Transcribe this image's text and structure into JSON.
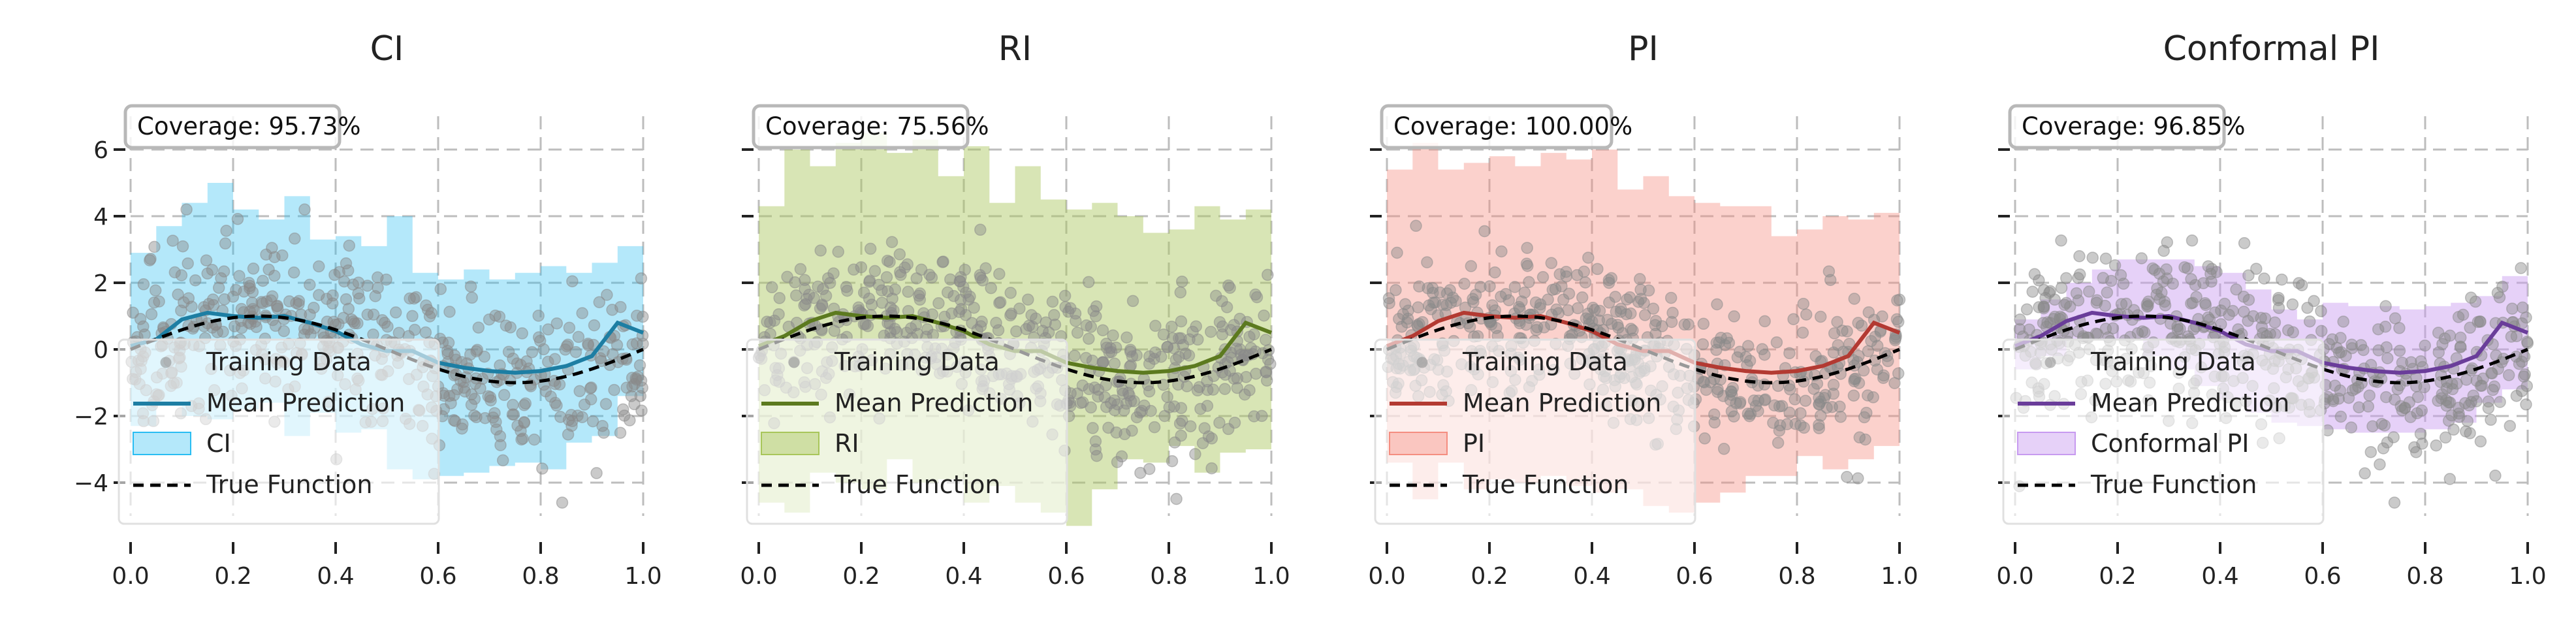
{
  "figure": {
    "colors": {
      "grid": "#bdbdbd",
      "scatter": "#8a8a8a",
      "true_function": "#000000"
    }
  },
  "chart_data": [
    {
      "type": "line",
      "title": "CI",
      "coverage_text": "Coverage: 95.73%",
      "band_name": "CI",
      "colors": {
        "band": "#29bdf2",
        "band_opacity": 0.35,
        "mean": "#1d7ea3"
      },
      "x": [
        0.0,
        0.05,
        0.1,
        0.15,
        0.2,
        0.25,
        0.3,
        0.35,
        0.4,
        0.45,
        0.5,
        0.55,
        0.6,
        0.65,
        0.7,
        0.75,
        0.8,
        0.85,
        0.9,
        0.95,
        1.0
      ],
      "upper": [
        2.9,
        3.7,
        4.4,
        5.0,
        4.2,
        3.9,
        4.6,
        3.3,
        3.4,
        3.1,
        4.0,
        2.3,
        2.1,
        2.4,
        2.1,
        2.3,
        2.5,
        2.3,
        2.6,
        3.1,
        3.2
      ],
      "lower": [
        -2.4,
        -2.3,
        -1.7,
        -2.0,
        -2.1,
        -1.8,
        -1.6,
        -2.6,
        -1.9,
        -2.5,
        -2.4,
        -3.6,
        -3.9,
        -3.8,
        -3.7,
        -3.5,
        -3.4,
        -3.6,
        -2.8,
        -2.6,
        -1.4
      ],
      "mean": [
        0.1,
        0.3,
        0.9,
        1.1,
        1.0,
        0.95,
        1.0,
        0.8,
        0.55,
        0.15,
        -0.05,
        -0.05,
        -0.4,
        -0.55,
        -0.65,
        -0.7,
        -0.65,
        -0.5,
        -0.2,
        0.8,
        0.5
      ],
      "legend": [
        "Training Data",
        "Mean Prediction",
        "CI",
        "True Function"
      ],
      "xlim": [
        0.0,
        1.0
      ],
      "ylim": [
        -5.0,
        7.0
      ],
      "xticks": [
        0.0,
        0.2,
        0.4,
        0.6,
        0.8,
        1.0
      ],
      "yticks": [
        -4,
        -2,
        0,
        2,
        4,
        6
      ],
      "show_y_tick_labels": true
    },
    {
      "type": "line",
      "title": "RI",
      "coverage_text": "Coverage: 75.56%",
      "band_name": "RI",
      "colors": {
        "band": "#a8c65a",
        "band_opacity": 0.45,
        "mean": "#5c7a1f"
      },
      "x": [
        0.0,
        0.05,
        0.1,
        0.15,
        0.2,
        0.25,
        0.3,
        0.35,
        0.4,
        0.45,
        0.5,
        0.55,
        0.6,
        0.65,
        0.7,
        0.75,
        0.8,
        0.85,
        0.9,
        0.95,
        1.0
      ],
      "upper": [
        4.3,
        6.0,
        5.5,
        6.2,
        6.5,
        5.9,
        6.3,
        5.2,
        6.1,
        4.4,
        5.5,
        4.5,
        4.2,
        4.4,
        4.0,
        3.5,
        3.6,
        4.3,
        3.9,
        4.2,
        4.4
      ],
      "lower": [
        -3.4,
        -4.6,
        -4.9,
        -3.7,
        -4.0,
        -4.2,
        -3.3,
        -4.0,
        -3.9,
        -4.6,
        -4.1,
        -4.6,
        -4.9,
        -5.3,
        -4.2,
        -3.3,
        -3.4,
        -2.9,
        -3.7,
        -3.1,
        -3.0
      ],
      "mean": [
        0.1,
        0.4,
        0.85,
        1.1,
        1.0,
        0.95,
        1.0,
        0.8,
        0.55,
        0.15,
        -0.05,
        -0.05,
        -0.4,
        -0.55,
        -0.65,
        -0.7,
        -0.65,
        -0.5,
        -0.2,
        0.8,
        0.5
      ],
      "legend": [
        "Training Data",
        "Mean Prediction",
        "RI",
        "True Function"
      ],
      "xlim": [
        0.0,
        1.0
      ],
      "ylim": [
        -5.0,
        7.0
      ],
      "xticks": [
        0.0,
        0.2,
        0.4,
        0.6,
        0.8,
        1.0
      ],
      "yticks": [
        -4,
        -2,
        0,
        2,
        4,
        6
      ],
      "show_y_tick_labels": false
    },
    {
      "type": "line",
      "title": "PI",
      "coverage_text": "Coverage: 100.00%",
      "band_name": "PI",
      "colors": {
        "band": "#f48d80",
        "band_opacity": 0.4,
        "mean": "#b33a32"
      },
      "x": [
        0.0,
        0.05,
        0.1,
        0.15,
        0.2,
        0.25,
        0.3,
        0.35,
        0.4,
        0.45,
        0.5,
        0.55,
        0.6,
        0.65,
        0.7,
        0.75,
        0.8,
        0.85,
        0.9,
        0.95,
        1.0
      ],
      "upper": [
        5.4,
        6.2,
        5.4,
        5.6,
        5.8,
        5.5,
        5.9,
        5.7,
        6.0,
        4.8,
        5.2,
        4.6,
        4.4,
        4.3,
        4.3,
        3.4,
        3.6,
        4.0,
        3.9,
        4.1,
        4.2
      ],
      "lower": [
        -3.5,
        -3.4,
        -4.5,
        -3.4,
        -4.2,
        -3.9,
        -4.0,
        -3.8,
        -4.1,
        -4.3,
        -4.2,
        -4.7,
        -4.9,
        -4.6,
        -4.3,
        -3.8,
        -3.8,
        -3.2,
        -3.6,
        -3.3,
        -2.9
      ],
      "mean": [
        0.1,
        0.4,
        0.85,
        1.1,
        1.0,
        0.95,
        1.0,
        0.8,
        0.55,
        0.15,
        -0.05,
        -0.05,
        -0.4,
        -0.55,
        -0.65,
        -0.7,
        -0.65,
        -0.5,
        -0.2,
        0.8,
        0.5
      ],
      "legend": [
        "Training Data",
        "Mean Prediction",
        "PI",
        "True Function"
      ],
      "xlim": [
        0.0,
        1.0
      ],
      "ylim": [
        -5.0,
        7.0
      ],
      "xticks": [
        0.0,
        0.2,
        0.4,
        0.6,
        0.8,
        1.0
      ],
      "yticks": [
        -4,
        -2,
        0,
        2,
        4,
        6
      ],
      "show_y_tick_labels": false
    },
    {
      "type": "line",
      "title": "Conformal PI",
      "coverage_text": "Coverage: 96.85%",
      "band_name": "Conformal PI",
      "colors": {
        "band": "#c79af0",
        "band_opacity": 0.45,
        "mean": "#6a3d9a"
      },
      "x": [
        0.0,
        0.05,
        0.1,
        0.15,
        0.2,
        0.25,
        0.3,
        0.35,
        0.4,
        0.45,
        0.5,
        0.55,
        0.6,
        0.65,
        0.7,
        0.75,
        0.8,
        0.85,
        0.9,
        0.95,
        1.0
      ],
      "upper": [
        0.9,
        1.5,
        2.0,
        2.4,
        2.7,
        2.7,
        2.7,
        2.5,
        2.3,
        1.8,
        1.2,
        0.9,
        1.4,
        1.3,
        1.3,
        1.2,
        1.3,
        1.4,
        1.6,
        2.2,
        2.8
      ],
      "lower": [
        -1.0,
        -0.6,
        -0.2,
        0.3,
        0.3,
        0.3,
        -0.2,
        -0.6,
        -1.1,
        -1.5,
        -1.9,
        -2.2,
        -2.3,
        -2.4,
        -2.5,
        -2.5,
        -2.5,
        -2.4,
        -2.2,
        -1.6,
        -1.2
      ],
      "mean": [
        0.1,
        0.4,
        0.85,
        1.1,
        1.0,
        0.95,
        1.0,
        0.8,
        0.55,
        0.15,
        -0.05,
        -0.05,
        -0.4,
        -0.55,
        -0.65,
        -0.7,
        -0.65,
        -0.5,
        -0.2,
        0.8,
        0.5
      ],
      "legend": [
        "Training Data",
        "Mean Prediction",
        "Conformal PI",
        "True Function"
      ],
      "xlim": [
        0.0,
        1.0
      ],
      "ylim": [
        -5.0,
        7.0
      ],
      "xticks": [
        0.0,
        0.2,
        0.4,
        0.6,
        0.8,
        1.0
      ],
      "yticks": [
        -4,
        -2,
        0,
        2,
        4,
        6
      ],
      "show_y_tick_labels": false
    }
  ]
}
